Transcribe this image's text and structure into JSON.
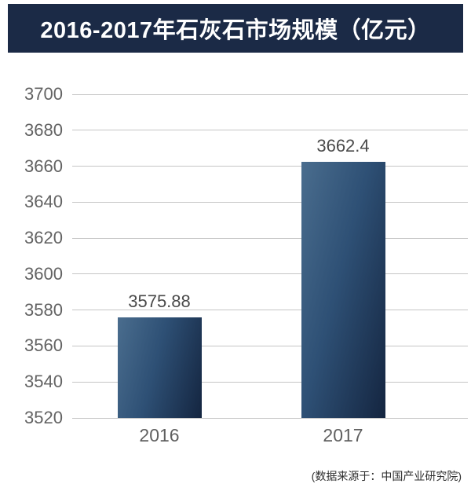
{
  "title": {
    "text": "2016-2017年石灰石市场规模（亿元）"
  },
  "source_note": "(数据来源于：中国产业研究院)",
  "chart_data": {
    "type": "bar",
    "title": "2016-2017年石灰石市场规模（亿元）",
    "categories": [
      "2016",
      "2017"
    ],
    "values": [
      3575.88,
      3662.4
    ],
    "value_labels": [
      "3575.88",
      "3662.4"
    ],
    "xlabel": "",
    "ylabel": "",
    "ylim": [
      3520,
      3700
    ],
    "ytick_step": 20,
    "yticks": [
      3700,
      3680,
      3660,
      3640,
      3620,
      3600,
      3580,
      3560,
      3540,
      3520
    ],
    "grid": true,
    "legend": false,
    "unit": "亿元",
    "source": "(数据来源于：中国产业研究院)",
    "colors": {
      "banner_bg": "#1b2a46",
      "banner_text": "#ffffff",
      "bar_gradient_light": "#4a6d8e",
      "bar_gradient_mid": "#2e5075",
      "bar_gradient_dark": "#142540",
      "gridline": "#c6c6c6",
      "tick_label": "#636363",
      "value_label": "#4a4a4a",
      "x_label": "#5f5f5f",
      "source_text": "#2e2e2e"
    }
  }
}
